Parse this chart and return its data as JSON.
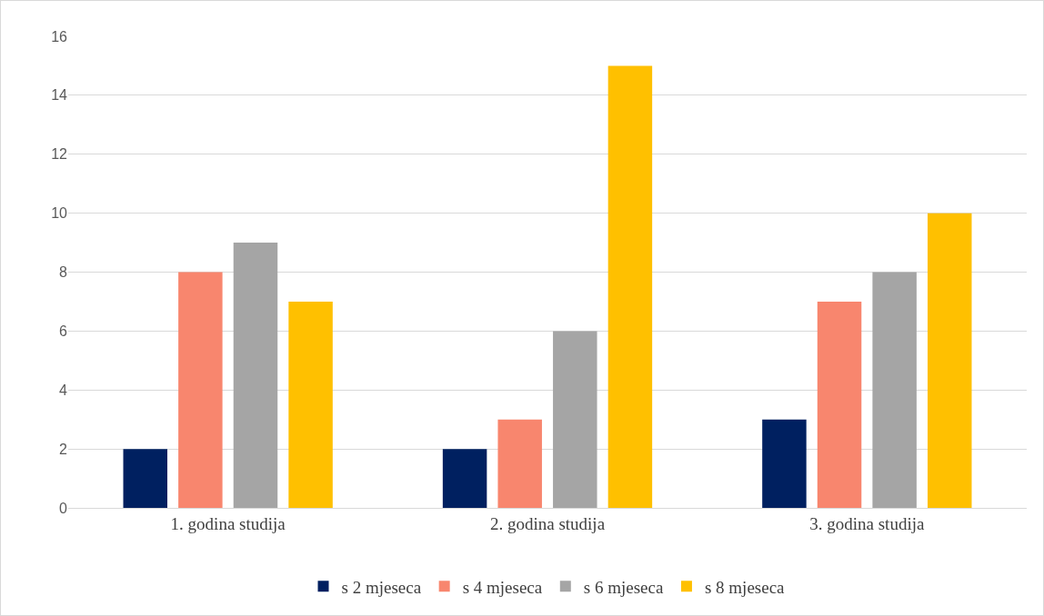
{
  "chart_data": {
    "type": "bar",
    "categories": [
      "1. godina studija",
      "2. godina studija",
      "3. godina studija"
    ],
    "series": [
      {
        "name": "s 2 mjeseca",
        "color": "#002060",
        "values": [
          2,
          2,
          3
        ]
      },
      {
        "name": "s 4 mjeseca",
        "color": "#f8866e",
        "values": [
          8,
          3,
          7
        ]
      },
      {
        "name": "s 6 mjeseca",
        "color": "#a5a5a5",
        "values": [
          9,
          6,
          8
        ]
      },
      {
        "name": "s 8 mjeseca",
        "color": "#ffc000",
        "values": [
          7,
          15,
          10
        ]
      }
    ],
    "ylim": [
      0,
      16
    ],
    "yticks": [
      0,
      2,
      4,
      6,
      8,
      10,
      12,
      14,
      16
    ],
    "grid": "y",
    "legend": "bottom"
  }
}
